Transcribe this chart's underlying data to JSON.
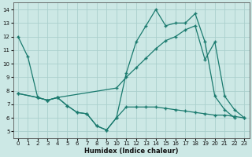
{
  "xlabel": "Humidex (Indice chaleur)",
  "xlim": [
    -0.5,
    23.5
  ],
  "ylim": [
    4.5,
    14.5
  ],
  "yticks": [
    5,
    6,
    7,
    8,
    9,
    10,
    11,
    12,
    13,
    14
  ],
  "xticks": [
    0,
    1,
    2,
    3,
    4,
    5,
    6,
    7,
    8,
    9,
    10,
    11,
    12,
    13,
    14,
    15,
    16,
    17,
    18,
    19,
    20,
    21,
    22,
    23
  ],
  "bg_color": "#cce8e5",
  "grid_color": "#aacfcc",
  "line_color": "#1a7a6e",
  "line1_x": [
    0,
    1,
    2,
    3,
    4,
    5,
    6,
    7,
    8,
    9,
    10,
    11,
    12,
    13,
    14,
    15,
    16,
    17,
    18,
    19,
    20,
    21,
    22
  ],
  "line1_y": [
    12.0,
    10.5,
    7.5,
    7.3,
    7.5,
    6.9,
    6.4,
    6.3,
    5.4,
    5.1,
    6.0,
    9.3,
    11.6,
    12.8,
    14.0,
    12.8,
    13.0,
    13.0,
    13.7,
    11.6,
    7.6,
    6.6,
    6.0
  ],
  "line2_x": [
    0,
    2,
    3,
    4,
    10,
    11,
    12,
    13,
    14,
    15,
    16,
    17,
    18,
    19,
    20,
    21,
    22,
    23
  ],
  "line2_y": [
    7.8,
    7.5,
    7.3,
    7.5,
    8.2,
    9.0,
    9.7,
    10.4,
    11.1,
    11.7,
    12.0,
    12.5,
    12.8,
    10.3,
    11.6,
    7.6,
    6.6,
    6.0
  ],
  "line3_x": [
    0,
    2,
    3,
    4,
    5,
    6,
    7,
    8,
    9,
    10,
    11,
    12,
    13,
    14,
    15,
    16,
    17,
    18,
    19,
    20,
    21,
    22,
    23
  ],
  "line3_y": [
    7.8,
    7.5,
    7.3,
    7.5,
    6.9,
    6.4,
    6.3,
    5.4,
    5.1,
    6.0,
    6.8,
    6.8,
    6.8,
    6.8,
    6.7,
    6.6,
    6.5,
    6.4,
    6.3,
    6.2,
    6.2,
    6.1,
    6.0
  ]
}
